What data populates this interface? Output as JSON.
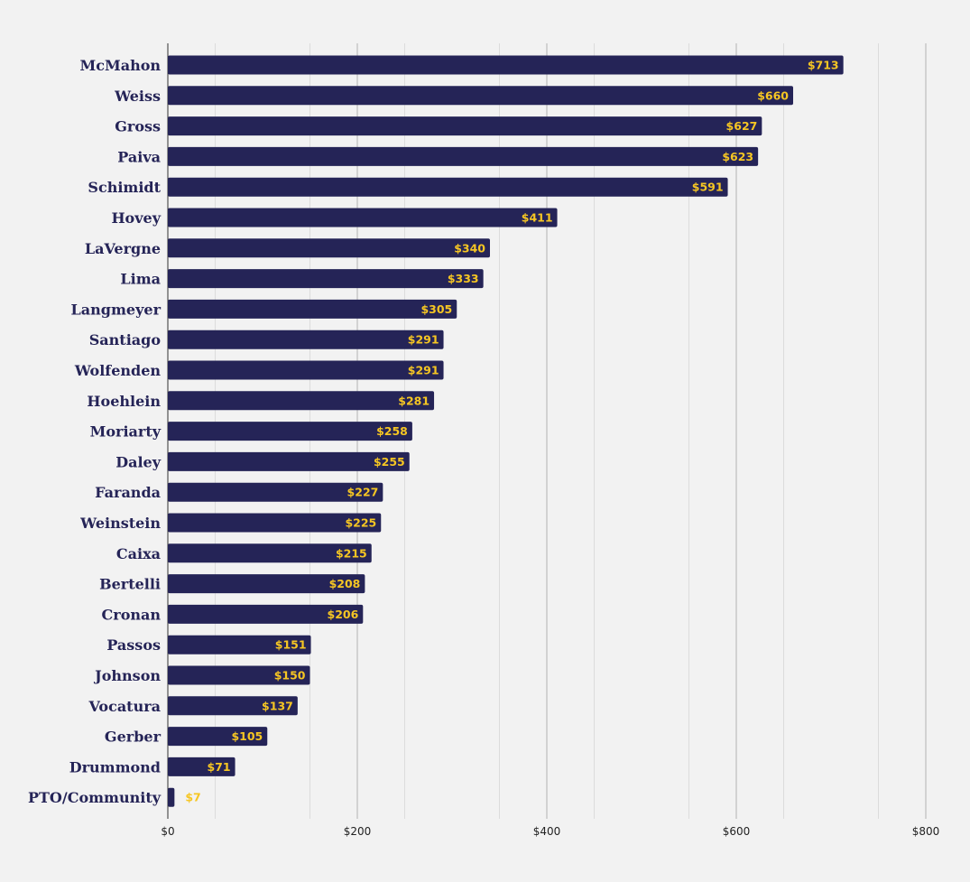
{
  "chart_data": {
    "type": "bar",
    "orientation": "horizontal",
    "title": "",
    "xlabel": "",
    "ylabel": "",
    "categories": [
      "McMahon",
      "Weiss",
      "Gross",
      "Paiva",
      "Schimidt",
      "Hovey",
      "LaVergne",
      "Lima",
      "Langmeyer",
      "Santiago",
      "Wolfenden",
      "Hoehlein",
      "Moriarty",
      "Daley",
      "Faranda",
      "Weinstein",
      "Caixa",
      "Bertelli",
      "Cronan",
      "Passos",
      "Johnson",
      "Vocatura",
      "Gerber",
      "Drummond",
      "PTO/Community"
    ],
    "values": [
      713,
      660,
      627,
      623,
      591,
      411,
      340,
      333,
      305,
      291,
      291,
      281,
      258,
      255,
      227,
      225,
      215,
      208,
      206,
      151,
      150,
      137,
      105,
      71,
      7
    ],
    "data_labels": [
      "$713",
      "$660",
      "$627",
      "$623",
      "$591",
      "$411",
      "$340",
      "$333",
      "$305",
      "$291",
      "$291",
      "$281",
      "$258",
      "$255",
      "$227",
      "$225",
      "$215",
      "$208",
      "$206",
      "$151",
      "$150",
      "$137",
      "$105",
      "$71",
      "$7"
    ],
    "xlim": [
      0,
      800
    ],
    "major_ticks": [
      0,
      200,
      400,
      600,
      800
    ],
    "tick_labels": [
      "$0",
      "$200",
      "$400",
      "$600",
      "$800"
    ],
    "minor_gridlines": true,
    "legend": "none",
    "colors": {
      "background": "#f2f2f2",
      "bar": "#252457",
      "bar_label": "#f6c623",
      "category_label": "#252457",
      "major_grid": "#b3b3b3",
      "minor_grid": "#dcdcdc",
      "axis": "#333333"
    }
  }
}
